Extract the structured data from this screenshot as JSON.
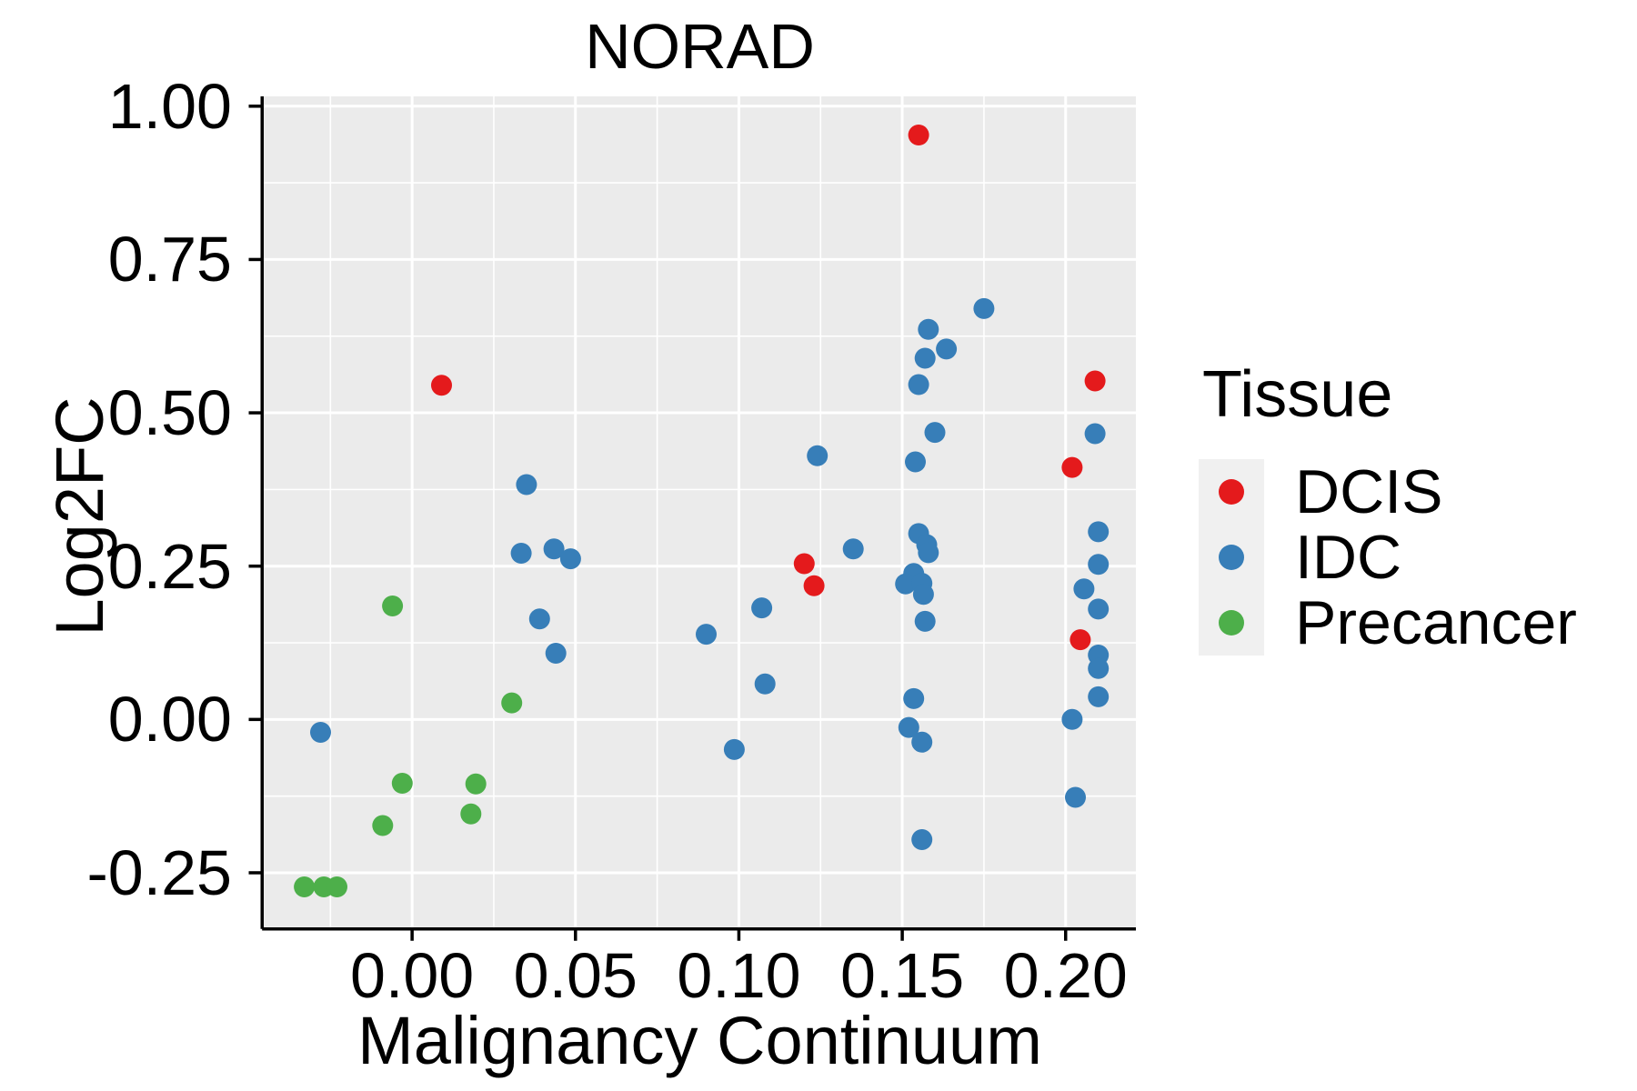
{
  "chart_data": {
    "type": "scatter",
    "title": "NORAD",
    "xlabel": "Malignancy Continuum",
    "ylabel": "Log2FC",
    "xlim": [
      -0.0454,
      0.2215
    ],
    "ylim": [
      -0.339,
      1.016
    ],
    "x_ticks": {
      "values": [
        0.0,
        0.05,
        0.1,
        0.15,
        0.2
      ],
      "labels": [
        "0.00",
        "0.05",
        "0.10",
        "0.15",
        "0.20"
      ]
    },
    "y_ticks": {
      "values": [
        1.0,
        0.75,
        0.5,
        0.25,
        0.0,
        -0.25
      ],
      "labels": [
        "1.00",
        "0.75",
        "0.50",
        "0.25",
        "0.00",
        "-0.25"
      ]
    },
    "grid": {
      "major": true,
      "minor": true,
      "color": "#FFFFFF"
    },
    "panel_bg": "#EBEBEB",
    "axis_color": "#000000",
    "legend": {
      "title": "Tissue",
      "position": "right",
      "key_bg": "#F0F0F0",
      "entries": [
        {
          "label": "DCIS",
          "color": "#E41A1C"
        },
        {
          "label": "IDC",
          "color": "#377EB8"
        },
        {
          "label": "Precancer",
          "color": "#4DAF4A"
        }
      ]
    },
    "series": [
      {
        "name": "DCIS",
        "color": "#E41A1C",
        "points": [
          [
            0.009,
            0.545
          ],
          [
            0.155,
            0.953
          ],
          [
            0.12,
            0.254
          ],
          [
            0.123,
            0.218
          ],
          [
            0.209,
            0.552
          ],
          [
            0.202,
            0.411
          ],
          [
            0.2045,
            0.13
          ]
        ]
      },
      {
        "name": "IDC",
        "color": "#377EB8",
        "points": [
          [
            -0.028,
            -0.021
          ],
          [
            0.0334,
            0.271
          ],
          [
            0.0434,
            0.278
          ],
          [
            0.0485,
            0.262
          ],
          [
            0.039,
            0.164
          ],
          [
            0.044,
            0.108
          ],
          [
            0.035,
            0.383
          ],
          [
            0.09,
            0.139
          ],
          [
            0.107,
            0.182
          ],
          [
            0.108,
            0.058
          ],
          [
            0.0986,
            -0.049
          ],
          [
            0.124,
            0.43
          ],
          [
            0.135,
            0.278
          ],
          [
            0.175,
            0.67
          ],
          [
            0.158,
            0.636
          ],
          [
            0.1635,
            0.604
          ],
          [
            0.157,
            0.589
          ],
          [
            0.155,
            0.546
          ],
          [
            0.16,
            0.468
          ],
          [
            0.154,
            0.42
          ],
          [
            0.155,
            0.303
          ],
          [
            0.1575,
            0.285
          ],
          [
            0.158,
            0.272
          ],
          [
            0.1535,
            0.238
          ],
          [
            0.151,
            0.221
          ],
          [
            0.156,
            0.222
          ],
          [
            0.1565,
            0.204
          ],
          [
            0.157,
            0.16
          ],
          [
            0.1535,
            0.034
          ],
          [
            0.152,
            -0.013
          ],
          [
            0.156,
            -0.037
          ],
          [
            0.156,
            -0.196
          ],
          [
            0.21,
            0.306
          ],
          [
            0.21,
            0.253
          ],
          [
            0.2056,
            0.213
          ],
          [
            0.21,
            0.18
          ],
          [
            0.21,
            0.105
          ],
          [
            0.21,
            0.083
          ],
          [
            0.21,
            0.037
          ],
          [
            0.202,
            0.0
          ],
          [
            0.203,
            -0.127
          ],
          [
            0.209,
            0.466
          ]
        ]
      },
      {
        "name": "Precancer",
        "color": "#4DAF4A",
        "points": [
          [
            -0.033,
            -0.273
          ],
          [
            -0.027,
            -0.273
          ],
          [
            -0.023,
            -0.273
          ],
          [
            -0.009,
            -0.173
          ],
          [
            -0.003,
            -0.104
          ],
          [
            -0.006,
            0.185
          ],
          [
            0.0195,
            -0.105
          ],
          [
            0.018,
            -0.154
          ],
          [
            0.0305,
            0.027
          ]
        ]
      }
    ]
  }
}
